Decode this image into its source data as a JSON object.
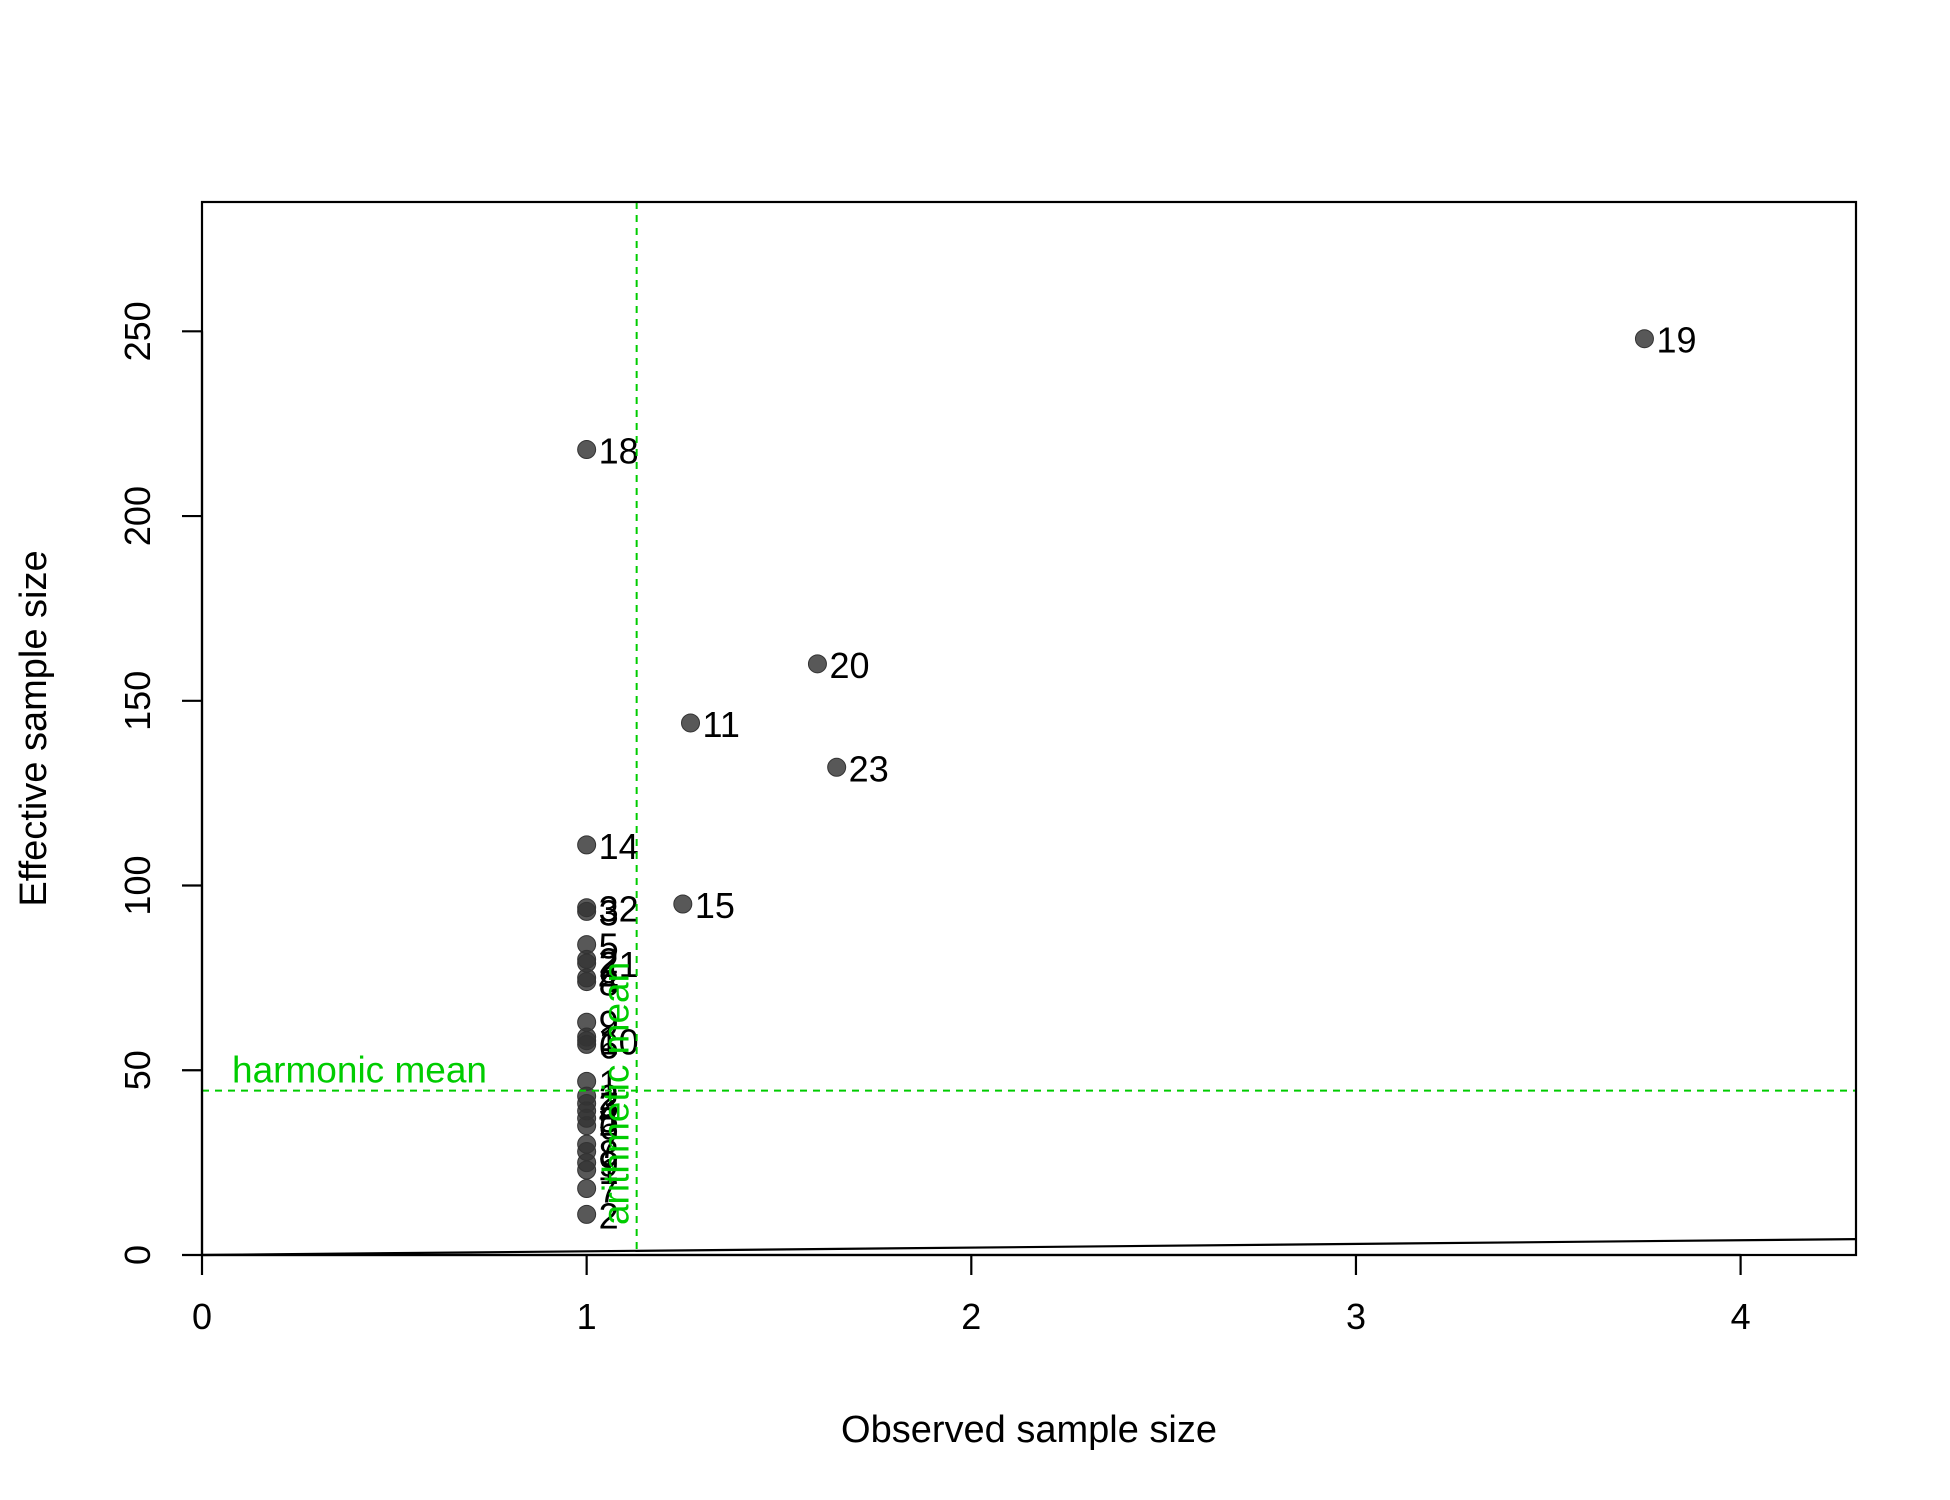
{
  "chart_data": {
    "type": "scatter",
    "title": "",
    "xlabel": "Observed sample size",
    "ylabel": "Effective sample size",
    "xlim": [
      0,
      4.3
    ],
    "ylim": [
      0,
      285
    ],
    "xticks": [
      0,
      1,
      2,
      3,
      4
    ],
    "yticks": [
      0,
      50,
      100,
      150,
      200,
      250
    ],
    "grid": false,
    "point_color": "#333333",
    "reference_color": "#00cc00",
    "points": [
      {
        "x": 3.75,
        "y": 248,
        "label": "19"
      },
      {
        "x": 1.0,
        "y": 218,
        "label": "18"
      },
      {
        "x": 1.6,
        "y": 160,
        "label": "20"
      },
      {
        "x": 1.27,
        "y": 144,
        "label": "11"
      },
      {
        "x": 1.65,
        "y": 132,
        "label": "23"
      },
      {
        "x": 1.0,
        "y": 111,
        "label": "14"
      },
      {
        "x": 1.25,
        "y": 95,
        "label": "15"
      },
      {
        "x": 1.0,
        "y": 94,
        "label": "32"
      },
      {
        "x": 1.0,
        "y": 93,
        "label": "3"
      },
      {
        "x": 1.0,
        "y": 84,
        "label": "5"
      },
      {
        "x": 1.0,
        "y": 80,
        "label": "2"
      },
      {
        "x": 1.0,
        "y": 79,
        "label": "21"
      },
      {
        "x": 1.0,
        "y": 75,
        "label": "4"
      },
      {
        "x": 1.0,
        "y": 74,
        "label": "8"
      },
      {
        "x": 1.0,
        "y": 63,
        "label": "9"
      },
      {
        "x": 1.0,
        "y": 59,
        "label": "1"
      },
      {
        "x": 1.0,
        "y": 58,
        "label": "10"
      },
      {
        "x": 1.0,
        "y": 57,
        "label": "6"
      },
      {
        "x": 1.0,
        "y": 47,
        "label": "1"
      },
      {
        "x": 1.0,
        "y": 43,
        "label": "2"
      },
      {
        "x": 1.0,
        "y": 41,
        "label": "3"
      },
      {
        "x": 1.0,
        "y": 39,
        "label": "4"
      },
      {
        "x": 1.0,
        "y": 37,
        "label": "5"
      },
      {
        "x": 1.0,
        "y": 35,
        "label": "6"
      },
      {
        "x": 1.0,
        "y": 30,
        "label": "7"
      },
      {
        "x": 1.0,
        "y": 28,
        "label": "8"
      },
      {
        "x": 1.0,
        "y": 25,
        "label": "9"
      },
      {
        "x": 1.0,
        "y": 23,
        "label": "1"
      },
      {
        "x": 1.0,
        "y": 18,
        "label": "7"
      },
      {
        "x": 1.0,
        "y": 11,
        "label": "2"
      }
    ],
    "reference_lines": {
      "harmonic_mean": {
        "orientation": "horizontal",
        "value": 44.5,
        "label": "harmonic mean"
      },
      "arithmetic_mean": {
        "orientation": "vertical",
        "value": 1.13,
        "label": "arithmetic mean"
      }
    },
    "identity_line": {
      "from": [
        0,
        0
      ],
      "to": [
        4.3,
        4.3
      ]
    }
  }
}
